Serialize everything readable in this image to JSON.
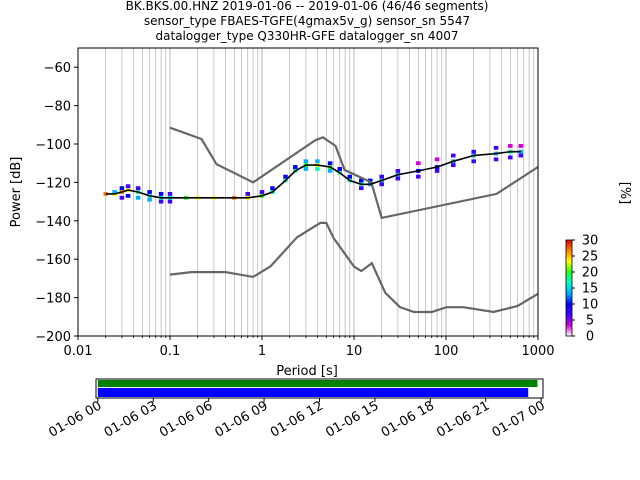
{
  "header": {
    "title_lines": [
      "BK.BKS.00.HNZ   2019-01-06 -- 2019-01-06  (46/46 segments)",
      "sensor_type FBAES-TGFE(4gmax5v_g) sensor_sn 5547",
      "datalogger_type Q330HR-GFE datalogger_sn 4007"
    ]
  },
  "chart_data": [
    {
      "type": "heatmap",
      "title": "BK.BKS.00.HNZ   2019-01-06 -- 2019-01-06  (46/46 segments)",
      "xlabel": "Period [s]",
      "ylabel": "Power [dB]",
      "x_scale": "log",
      "xlim": [
        0.01,
        1000
      ],
      "ylim": [
        -200,
        -50
      ],
      "x_ticks": [
        0.01,
        0.1,
        1,
        10,
        100,
        1000
      ],
      "x_tick_labels": [
        "0.01",
        "0.1",
        "1",
        "10",
        "100",
        "1000"
      ],
      "y_ticks": [
        -200,
        -180,
        -160,
        -140,
        -120,
        -100,
        -80,
        -60
      ],
      "y_tick_labels": [
        "−200",
        "−180",
        "−160",
        "−140",
        "−120",
        "−100",
        "−80",
        "−60"
      ],
      "grid": "vertical",
      "colorbar": {
        "label": "[%]",
        "range": [
          0,
          30
        ],
        "ticks": [
          0,
          5,
          10,
          15,
          20,
          25,
          30
        ],
        "tick_labels": [
          "0",
          "5",
          "10",
          "15",
          "20",
          "25",
          "30"
        ],
        "colormap": [
          "#ffffff",
          "#d000d0",
          "#4000ff",
          "#0000ff",
          "#00b0ff",
          "#00ffc0",
          "#20ff20",
          "#ffff00",
          "#ff8000",
          "#e00000"
        ]
      },
      "mode_curve": {
        "period": [
          0.02,
          0.025,
          0.03,
          0.035,
          0.045,
          0.06,
          0.08,
          0.1,
          0.15,
          0.2,
          0.3,
          0.5,
          0.7,
          1.0,
          1.3,
          1.8,
          2.3,
          3.0,
          4.0,
          5.5,
          7.0,
          9.0,
          12,
          15,
          20,
          30,
          50,
          80,
          120,
          200,
          350,
          500,
          650
        ],
        "power": [
          -126,
          -126,
          -125,
          -124,
          -125,
          -127,
          -128,
          -128,
          -128,
          -128,
          -128,
          -128,
          -128,
          -127,
          -125,
          -119,
          -114,
          -111,
          -111,
          -112,
          -115,
          -119,
          -121,
          -121,
          -119,
          -116,
          -114,
          -112,
          -109,
          -106,
          -105,
          -104,
          -104
        ]
      },
      "noise_models": [
        {
          "name": "high",
          "period": [
            0.1,
            0.22,
            0.32,
            0.8,
            3.8,
            4.6,
            6.3,
            7.9,
            15.4,
            20,
            354.8,
            1000
          ],
          "power": [
            -91.5,
            -97.4,
            -110.5,
            -120,
            -98,
            -96.5,
            -101,
            -113.5,
            -120,
            -138.5,
            -126,
            -112
          ]
        },
        {
          "name": "low",
          "period": [
            0.1,
            0.17,
            0.4,
            0.8,
            1.24,
            2.4,
            4.3,
            5.0,
            6.0,
            10.0,
            12.0,
            15.6,
            21.9,
            31.6,
            45,
            70,
            101,
            154,
            328,
            600,
            1000
          ],
          "power": [
            -168,
            -166.7,
            -166.7,
            -169.2,
            -163.7,
            -148.6,
            -141.1,
            -141.1,
            -149.0,
            -163.8,
            -166.2,
            -162.1,
            -177.5,
            -185.0,
            -187.5,
            -187.5,
            -185.0,
            -185.0,
            -187.5,
            -184.4,
            -178
          ]
        }
      ],
      "histogram_cells": [
        {
          "period": 0.02,
          "power": -126,
          "pct": 28
        },
        {
          "period": 0.025,
          "power": -126,
          "pct": 22
        },
        {
          "period": 0.025,
          "power": -125,
          "pct": 12
        },
        {
          "period": 0.03,
          "power": -125,
          "pct": 26
        },
        {
          "period": 0.03,
          "power": -123,
          "pct": 10
        },
        {
          "period": 0.03,
          "power": -128,
          "pct": 6
        },
        {
          "period": 0.035,
          "power": -124,
          "pct": 24
        },
        {
          "period": 0.035,
          "power": -122,
          "pct": 8
        },
        {
          "period": 0.035,
          "power": -127,
          "pct": 10
        },
        {
          "period": 0.045,
          "power": -125,
          "pct": 18
        },
        {
          "period": 0.045,
          "power": -123,
          "pct": 8
        },
        {
          "period": 0.045,
          "power": -128,
          "pct": 12
        },
        {
          "period": 0.06,
          "power": -127,
          "pct": 16
        },
        {
          "period": 0.06,
          "power": -125,
          "pct": 9
        },
        {
          "period": 0.06,
          "power": -129,
          "pct": 14
        },
        {
          "period": 0.08,
          "power": -128,
          "pct": 15
        },
        {
          "period": 0.08,
          "power": -126,
          "pct": 10
        },
        {
          "period": 0.08,
          "power": -130,
          "pct": 5
        },
        {
          "period": 0.1,
          "power": -128,
          "pct": 16
        },
        {
          "period": 0.1,
          "power": -126,
          "pct": 8
        },
        {
          "period": 0.1,
          "power": -130,
          "pct": 6
        },
        {
          "period": 0.15,
          "power": -128,
          "pct": 20
        },
        {
          "period": 0.2,
          "power": -128,
          "pct": 22
        },
        {
          "period": 0.3,
          "power": -128,
          "pct": 24
        },
        {
          "period": 0.5,
          "power": -128,
          "pct": 25
        },
        {
          "period": 0.7,
          "power": -128,
          "pct": 22
        },
        {
          "period": 0.7,
          "power": -126,
          "pct": 6
        },
        {
          "period": 1.0,
          "power": -127,
          "pct": 20
        },
        {
          "period": 1.0,
          "power": -125,
          "pct": 8
        },
        {
          "period": 1.3,
          "power": -125,
          "pct": 18
        },
        {
          "period": 1.3,
          "power": -123,
          "pct": 9
        },
        {
          "period": 1.8,
          "power": -119,
          "pct": 18
        },
        {
          "period": 1.8,
          "power": -117,
          "pct": 10
        },
        {
          "period": 2.3,
          "power": -114,
          "pct": 18
        },
        {
          "period": 2.3,
          "power": -112,
          "pct": 10
        },
        {
          "period": 3.0,
          "power": -111,
          "pct": 20
        },
        {
          "period": 3.0,
          "power": -109,
          "pct": 12
        },
        {
          "period": 3.0,
          "power": -113,
          "pct": 14
        },
        {
          "period": 4.0,
          "power": -111,
          "pct": 22
        },
        {
          "period": 4.0,
          "power": -109,
          "pct": 12
        },
        {
          "period": 4.0,
          "power": -113,
          "pct": 16
        },
        {
          "period": 5.5,
          "power": -112,
          "pct": 20
        },
        {
          "period": 5.5,
          "power": -110,
          "pct": 10
        },
        {
          "period": 5.5,
          "power": -114,
          "pct": 14
        },
        {
          "period": 7.0,
          "power": -115,
          "pct": 18
        },
        {
          "period": 7.0,
          "power": -113,
          "pct": 10
        },
        {
          "period": 9.0,
          "power": -119,
          "pct": 16
        },
        {
          "period": 9.0,
          "power": -117,
          "pct": 10
        },
        {
          "period": 12,
          "power": -121,
          "pct": 15
        },
        {
          "period": 12,
          "power": -119,
          "pct": 9
        },
        {
          "period": 12,
          "power": -123,
          "pct": 5
        },
        {
          "period": 15,
          "power": -121,
          "pct": 14
        },
        {
          "period": 15,
          "power": -119,
          "pct": 9
        },
        {
          "period": 20,
          "power": -119,
          "pct": 13
        },
        {
          "period": 20,
          "power": -117,
          "pct": 8
        },
        {
          "period": 20,
          "power": -121,
          "pct": 6
        },
        {
          "period": 30,
          "power": -116,
          "pct": 12
        },
        {
          "period": 30,
          "power": -114,
          "pct": 7
        },
        {
          "period": 30,
          "power": -118,
          "pct": 8
        },
        {
          "period": 50,
          "power": -114,
          "pct": 11
        },
        {
          "period": 50,
          "power": -110,
          "pct": 4
        },
        {
          "period": 50,
          "power": -117,
          "pct": 5
        },
        {
          "period": 80,
          "power": -112,
          "pct": 11
        },
        {
          "period": 80,
          "power": -108,
          "pct": 4
        },
        {
          "period": 80,
          "power": -114,
          "pct": 7
        },
        {
          "period": 120,
          "power": -109,
          "pct": 12
        },
        {
          "period": 120,
          "power": -106,
          "pct": 5
        },
        {
          "period": 120,
          "power": -111,
          "pct": 7
        },
        {
          "period": 200,
          "power": -106,
          "pct": 13
        },
        {
          "period": 200,
          "power": -104,
          "pct": 6
        },
        {
          "period": 200,
          "power": -109,
          "pct": 6
        },
        {
          "period": 350,
          "power": -105,
          "pct": 14
        },
        {
          "period": 350,
          "power": -102,
          "pct": 5
        },
        {
          "period": 350,
          "power": -108,
          "pct": 8
        },
        {
          "period": 500,
          "power": -104,
          "pct": 18
        },
        {
          "period": 500,
          "power": -101,
          "pct": 4
        },
        {
          "period": 500,
          "power": -107,
          "pct": 7
        },
        {
          "period": 650,
          "power": -104,
          "pct": 14
        },
        {
          "period": 650,
          "power": -101,
          "pct": 4
        },
        {
          "period": 650,
          "power": -106,
          "pct": 6
        }
      ]
    },
    {
      "type": "bar",
      "title": "",
      "x_ticks": [
        "01-06 00",
        "01-06 03",
        "01-06 06",
        "01-06 09",
        "01-06 12",
        "01-06 15",
        "01-06 18",
        "01-06 21",
        "01-07 00"
      ],
      "xlim": [
        -0.1,
        24.1
      ],
      "series": [
        {
          "color": "#008000",
          "start_hour": 0.0,
          "end_hour": 23.8
        },
        {
          "color": "#0000ff",
          "start_hour": 0.0,
          "end_hour": 23.3
        }
      ]
    }
  ]
}
